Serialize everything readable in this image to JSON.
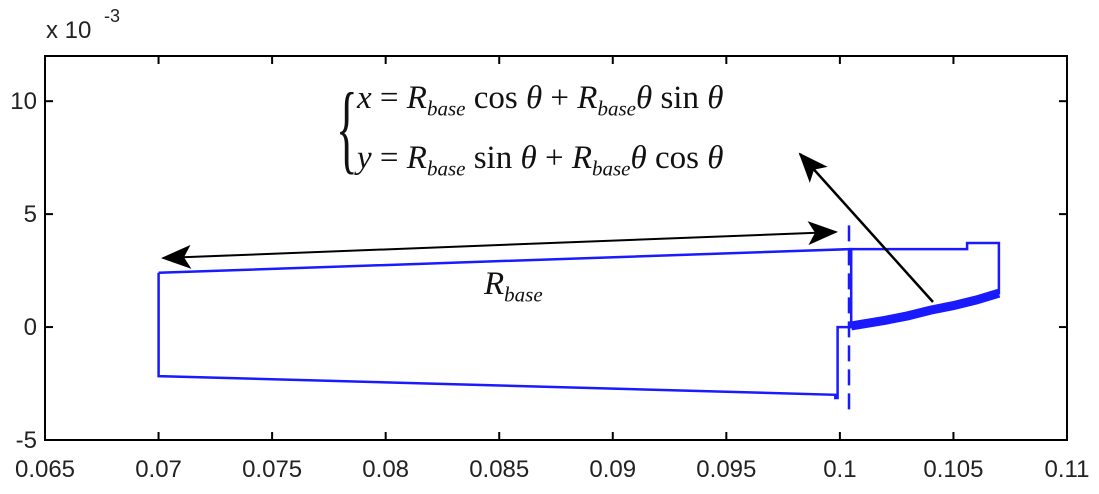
{
  "chart_data": {
    "type": "line",
    "title": "",
    "xlabel": "",
    "ylabel": "",
    "y_exponent_label": "x 10",
    "y_exponent_power": "-3",
    "xlim": [
      0.065,
      0.11
    ],
    "ylim": [
      -5,
      12
    ],
    "x_ticks": [
      "0.065",
      "0.07",
      "0.075",
      "0.08",
      "0.085",
      "0.09",
      "0.095",
      "0.1",
      "0.105",
      "0.11"
    ],
    "x_tick_values": [
      0.065,
      0.07,
      0.075,
      0.08,
      0.085,
      0.09,
      0.095,
      0.1,
      0.105,
      0.11
    ],
    "y_ticks": [
      "-5",
      "0",
      "5",
      "10"
    ],
    "y_tick_values": [
      -5,
      0,
      5,
      10
    ],
    "grid": false,
    "line_color": "#1a1aff",
    "series": [
      {
        "style": "solid",
        "x": [
          0.07,
          0.07,
          0.0998,
          0.0998,
          0.0999,
          0.0999,
          0.1005,
          0.1005,
          0.1056,
          0.1056,
          0.107,
          0.107,
          0.1005,
          0.1005,
          0.07
        ],
        "y": [
          2.4,
          -2.17,
          -3.0,
          -3.14,
          -3.14,
          0.0,
          0.0,
          3.45,
          3.45,
          3.72,
          3.72,
          1.5,
          0.1,
          3.45,
          2.4
        ]
      },
      {
        "style": "thick",
        "x": [
          0.1005,
          0.102,
          0.103,
          0.104,
          0.105,
          0.106,
          0.107
        ],
        "y": [
          0.05,
          0.3,
          0.5,
          0.75,
          0.95,
          1.2,
          1.5
        ]
      },
      {
        "style": "dashed",
        "x": [
          0.1004,
          0.1004
        ],
        "y": [
          4.5,
          -3.76
        ]
      }
    ],
    "annotations": {
      "r_label_main": "R",
      "r_label_sub": "base",
      "equation": {
        "line1": {
          "lhs": "x",
          "t1_fn": "cos",
          "t2_fn": "sin"
        },
        "line2": {
          "lhs": "y",
          "t1_fn": "sin",
          "t2_fn": "cos"
        },
        "R": "R",
        "sub": "base",
        "theta": "θ",
        "eq": "=",
        "plus": "+"
      }
    }
  }
}
